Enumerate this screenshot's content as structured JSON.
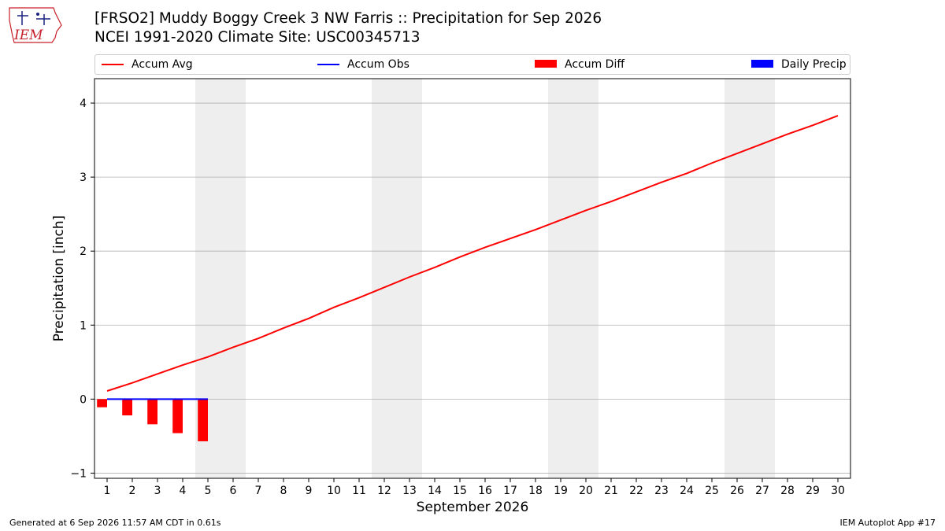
{
  "logo": {
    "text": "IEM",
    "icon": "iem-iowa-logo-icon"
  },
  "title": {
    "line1": "[FRSO2] Muddy Boggy Creek 3 NW Farris :: Precipitation for Sep 2026",
    "line2": "NCEI 1991-2020 Climate Site: USC00345713"
  },
  "legend": {
    "accum_avg": "Accum Avg",
    "accum_obs": "Accum Obs",
    "accum_diff": "Accum Diff",
    "daily_precip": "Daily Precip"
  },
  "colors": {
    "accum_avg": "#ff0000",
    "accum_obs": "#0000ff",
    "accum_diff": "#ff0000",
    "daily_precip": "#0000ff",
    "weekend_band": "#eeeeee",
    "grid": "#b0b0b0"
  },
  "footer": {
    "generated": "Generated at 6 Sep 2026 11:57 AM CDT in 0.61s",
    "app": "IEM Autoplot App #17"
  },
  "chart_data": {
    "type": "line",
    "title": "[FRSO2] Muddy Boggy Creek 3 NW Farris :: Precipitation for Sep 2026",
    "subtitle": "NCEI 1991-2020 Climate Site: USC00345713",
    "xlabel": "September 2026",
    "ylabel": "Precipitation [inch]",
    "xlim": [
      0.5,
      30.5
    ],
    "ylim": [
      -1.07,
      4.33
    ],
    "yticks": [
      -1,
      0,
      1,
      2,
      3,
      4
    ],
    "xtick_labels": [
      "1",
      "2",
      "3",
      "4",
      "5",
      "6",
      "7",
      "8",
      "9",
      "10",
      "11",
      "12",
      "13",
      "14",
      "15",
      "16",
      "17",
      "18",
      "19",
      "20",
      "21",
      "22",
      "23",
      "24",
      "25",
      "26",
      "27",
      "28",
      "29",
      "30"
    ],
    "grid": "y",
    "legend_position": "top",
    "weekend_bands": [
      [
        5,
        6
      ],
      [
        12,
        13
      ],
      [
        19,
        20
      ],
      [
        26,
        27
      ]
    ],
    "days": [
      1,
      2,
      3,
      4,
      5,
      6,
      7,
      8,
      9,
      10,
      11,
      12,
      13,
      14,
      15,
      16,
      17,
      18,
      19,
      20,
      21,
      22,
      23,
      24,
      25,
      26,
      27,
      28,
      29,
      30
    ],
    "series": [
      {
        "name": "Accum Avg",
        "kind": "line",
        "values": [
          0.11,
          0.22,
          0.34,
          0.46,
          0.57,
          0.7,
          0.82,
          0.96,
          1.09,
          1.24,
          1.37,
          1.51,
          1.65,
          1.78,
          1.92,
          2.05,
          2.17,
          2.29,
          2.42,
          2.55,
          2.67,
          2.8,
          2.93,
          3.05,
          3.19,
          3.32,
          3.45,
          3.58,
          3.7,
          3.83
        ]
      },
      {
        "name": "Accum Obs",
        "kind": "line",
        "days": [
          1,
          2,
          3,
          4,
          5
        ],
        "values": [
          0,
          0,
          0,
          0,
          0
        ]
      },
      {
        "name": "Accum Diff",
        "kind": "bar",
        "days": [
          1,
          2,
          3,
          4,
          5
        ],
        "values": [
          -0.11,
          -0.22,
          -0.34,
          -0.46,
          -0.57
        ]
      },
      {
        "name": "Daily Precip",
        "kind": "bar",
        "days": [
          1,
          2,
          3,
          4,
          5
        ],
        "values": [
          0,
          0,
          0,
          0,
          0
        ]
      }
    ]
  }
}
